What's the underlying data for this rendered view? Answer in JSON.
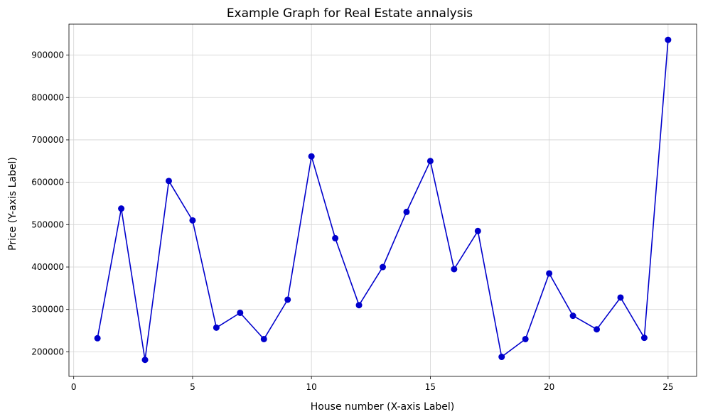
{
  "chart_data": {
    "type": "line",
    "title": "Example Graph for Real Estate annalysis",
    "xlabel": "House number (X-axis Label)",
    "ylabel": "Price (Y-axis Label)",
    "xlim": [
      -0.2,
      26.2
    ],
    "ylim": [
      142000,
      973000
    ],
    "grid": true,
    "x_ticks": [
      0,
      5,
      10,
      15,
      20,
      25
    ],
    "y_ticks": [
      200000,
      300000,
      400000,
      500000,
      600000,
      700000,
      800000,
      900000
    ],
    "series": [
      {
        "color": "#0000cc",
        "marker": "circle",
        "x": [
          1,
          2,
          3,
          4,
          5,
          6,
          7,
          8,
          9,
          10,
          11,
          12,
          13,
          14,
          15,
          16,
          17,
          18,
          19,
          20,
          21,
          22,
          23,
          24,
          25
        ],
        "values": [
          232000,
          538000,
          181000,
          603000,
          510000,
          257000,
          292000,
          230000,
          323000,
          661000,
          468000,
          310000,
          400000,
          530000,
          650000,
          395000,
          485000,
          188000,
          230000,
          385000,
          285000,
          253000,
          328000,
          233000,
          936000
        ]
      }
    ]
  }
}
